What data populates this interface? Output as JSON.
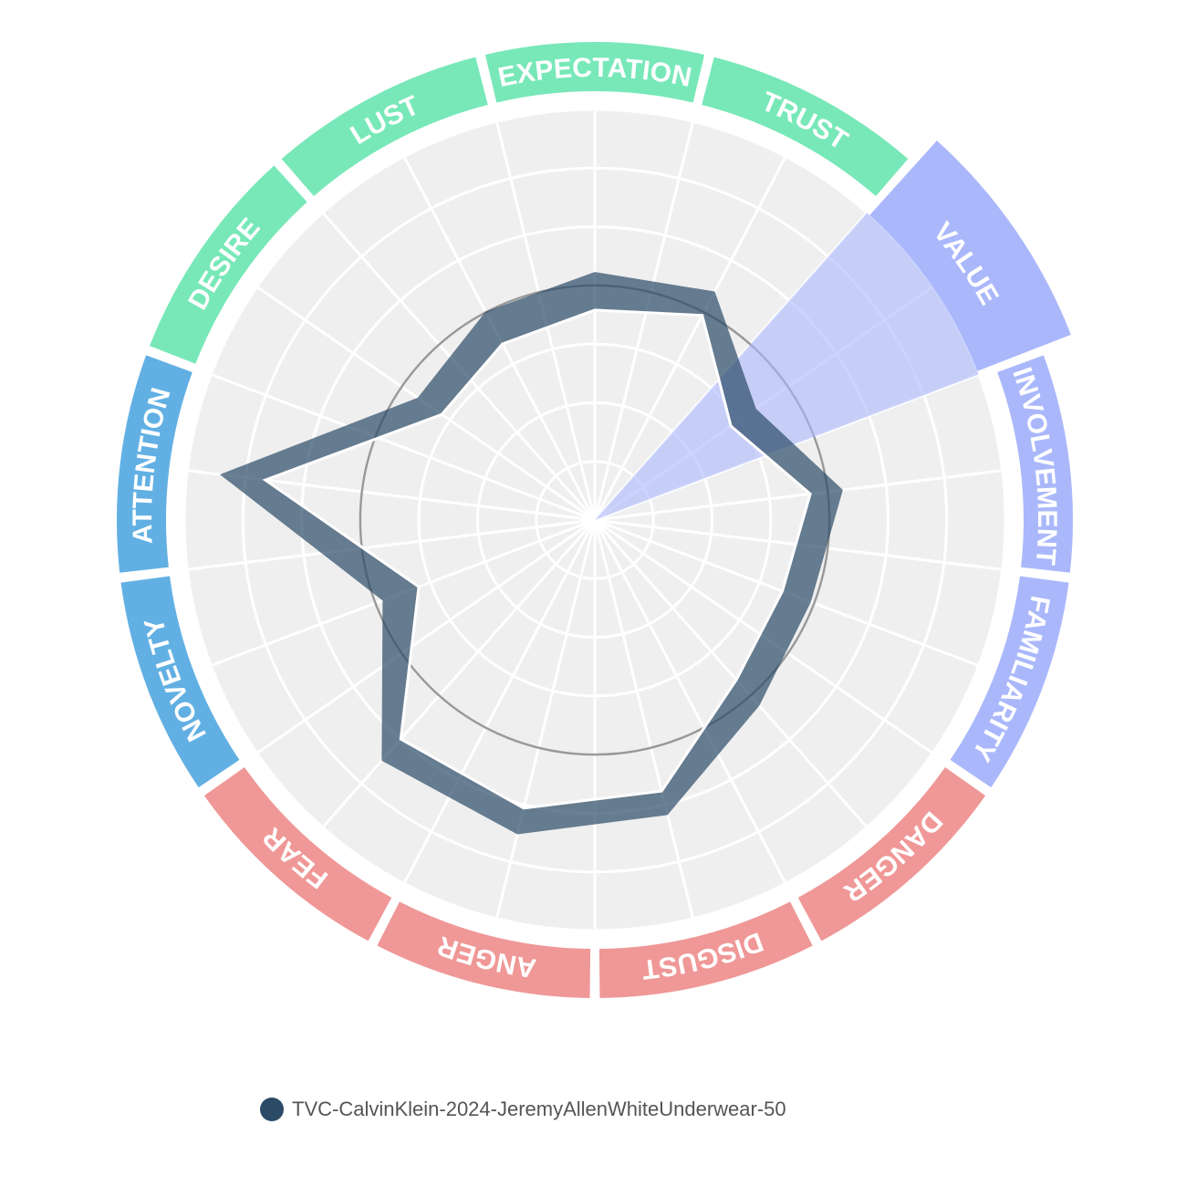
{
  "chart_data": {
    "type": "radar",
    "categories": [
      "EXPECTATION",
      "TRUST",
      "VALUE",
      "INVOLVEMENT",
      "FAMILIARITY",
      "DANGER",
      "DISGUST",
      "ANGER",
      "FEAR",
      "NOVELTY",
      "ATTENTION",
      "DESIRE",
      "LUST"
    ],
    "category_colors": [
      "#78e8b8",
      "#78e8b8",
      "#aab8fb",
      "#aab8fb",
      "#aab8fb",
      "#ef9897",
      "#ef9897",
      "#ef9897",
      "#ef9897",
      "#62b0e3",
      "#62b0e3",
      "#78e8b8",
      "#78e8b8"
    ],
    "selected": "VALUE",
    "ylim": [
      0,
      7
    ],
    "yticks": [
      1,
      2,
      3,
      4,
      5,
      6,
      7
    ],
    "reference": 4,
    "grid": true,
    "series": [
      {
        "name": "TVC-CalvinKlein-2024-JeremyAllenWhiteUnderwear-50",
        "color": "#2b4a66",
        "low": [
          3.58,
          3.94,
          2.82,
          3.7,
          3.42,
          3.64,
          4.76,
          5.06,
          4.99,
          3.21,
          5.66,
          3.17,
          3.39
        ],
        "high": [
          4.23,
          4.4,
          3.34,
          4.26,
          3.94,
          4.23,
          5.18,
          5.52,
          5.48,
          3.87,
          6.44,
          3.67,
          4.01
        ]
      }
    ]
  }
}
